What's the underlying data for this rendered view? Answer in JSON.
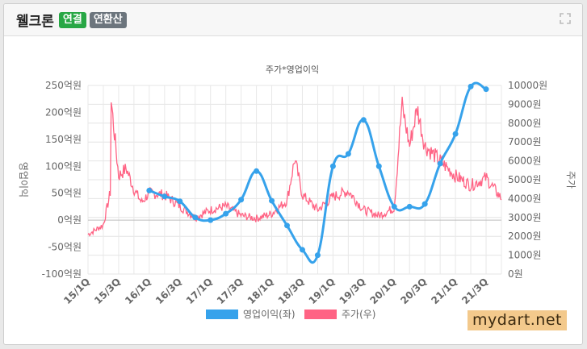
{
  "header": {
    "company": "웰크론",
    "badge_connected": "연결",
    "badge_annual": "연환산",
    "expand_icon": "expand-icon"
  },
  "watermark": "mydart.net",
  "chart_data": {
    "type": "line",
    "title": "주가*영업이익",
    "ylabel_left": "영업이익",
    "ylabel_right": "주가",
    "categories": [
      "15/1Q",
      "15/3Q",
      "16/1Q",
      "16/3Q",
      "17/1Q",
      "17/3Q",
      "18/1Q",
      "18/3Q",
      "19/1Q",
      "19/3Q",
      "20/1Q",
      "20/3Q",
      "21/1Q",
      "21/3Q"
    ],
    "y_left": {
      "min": -100,
      "max": 250,
      "step": 50,
      "unit": "억원"
    },
    "y_right": {
      "min": 0,
      "max": 10000,
      "step": 1000,
      "unit": "원"
    },
    "grid": true,
    "legend_position": "bottom",
    "series": [
      {
        "name": "영업이익(좌)",
        "axis": "left",
        "color": "#36a2eb",
        "points": [
          [
            "16/1Q",
            55
          ],
          [
            "16/2Q",
            44
          ],
          [
            "16/3Q",
            35
          ],
          [
            "16/4Q",
            5
          ],
          [
            "17/1Q",
            0
          ],
          [
            "17/2Q",
            12
          ],
          [
            "17/3Q",
            38
          ],
          [
            "17/4Q",
            91
          ],
          [
            "18/1Q",
            36
          ],
          [
            "18/2Q",
            -10
          ],
          [
            "18/3Q",
            -55
          ],
          [
            "18/4Q",
            -65
          ],
          [
            "19/1Q",
            100
          ],
          [
            "19/2Q",
            123
          ],
          [
            "19/3Q",
            186
          ],
          [
            "19/4Q",
            100
          ],
          [
            "20/1Q",
            25
          ],
          [
            "20/2Q",
            25
          ],
          [
            "20/3Q",
            30
          ],
          [
            "20/4Q",
            105
          ],
          [
            "21/1Q",
            160
          ],
          [
            "21/2Q",
            248
          ],
          [
            "21/3Q",
            243
          ]
        ]
      },
      {
        "name": "주가(우)",
        "axis": "right",
        "color": "#ff6384",
        "anchors": [
          [
            "15/1Q",
            2100
          ],
          [
            "15/2Q",
            2600
          ],
          [
            "15/2Q+",
            4500
          ],
          [
            "15/3Q-",
            9300
          ],
          [
            "15/3Q",
            5200
          ],
          [
            "15/3Q+",
            5600
          ],
          [
            "15/4Q",
            4500
          ],
          [
            "16/1Q-",
            3800
          ],
          [
            "16/1Q",
            4300
          ],
          [
            "16/2Q",
            4200
          ],
          [
            "16/3Q",
            3600
          ],
          [
            "16/4Q",
            3000
          ],
          [
            "17/1Q",
            3400
          ],
          [
            "17/2Q",
            3600
          ],
          [
            "17/3Q",
            3100
          ],
          [
            "17/4Q",
            2950
          ],
          [
            "18/1Q",
            3200
          ],
          [
            "18/2Q",
            3900
          ],
          [
            "18/2Q+",
            6100
          ],
          [
            "18/3Q",
            4200
          ],
          [
            "18/4Q",
            3400
          ],
          [
            "19/1Q",
            4100
          ],
          [
            "19/2Q",
            4400
          ],
          [
            "19/3Q",
            3400
          ],
          [
            "19/4Q",
            3100
          ],
          [
            "20/1Q",
            3500
          ],
          [
            "20/1Q+",
            9000
          ],
          [
            "20/2Q",
            6800
          ],
          [
            "20/2Q+",
            8800
          ],
          [
            "20/3Q",
            6800
          ],
          [
            "20/4Q",
            6000
          ],
          [
            "21/1Q",
            5200
          ],
          [
            "21/2Q",
            4700
          ],
          [
            "21/3Q",
            5100
          ],
          [
            "21/4Q",
            4000
          ]
        ]
      }
    ]
  }
}
